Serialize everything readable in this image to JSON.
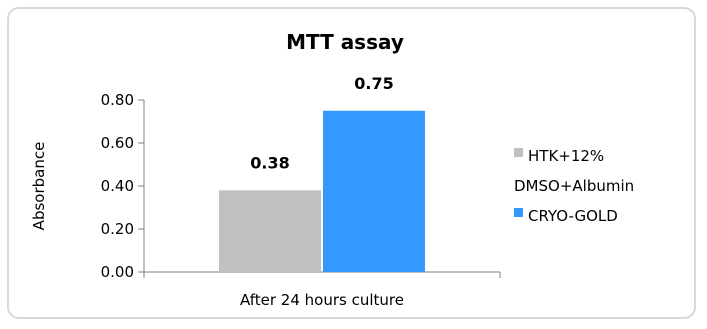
{
  "chart_data": {
    "type": "bar",
    "title": "MTT assay",
    "ylabel": "Absorbance",
    "xlabel": "",
    "categories": [
      "After 24 hours culture"
    ],
    "series": [
      {
        "name": "HTK+12% DMSO+Albumin",
        "values": [
          0.38
        ],
        "label": "0.38",
        "color": "#c0c0c0",
        "legend_lines": [
          "HTK+12%",
          "DMSO+Albumin"
        ]
      },
      {
        "name": "CRYO-GOLD",
        "values": [
          0.75
        ],
        "label": "0.75",
        "color": "#3399ff",
        "legend_lines": [
          "CRYO-GOLD"
        ]
      }
    ],
    "ylim": [
      0,
      0.8
    ],
    "yticks": [
      "0.00",
      "0.20",
      "0.40",
      "0.60",
      "0.80"
    ],
    "grid": false,
    "legend_position": "right"
  }
}
